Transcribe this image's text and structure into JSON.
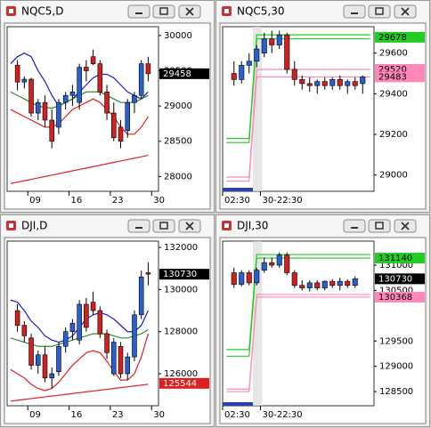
{
  "chart_data": [
    {
      "type": "candlestick",
      "title": "NQC5,D",
      "ylim": [
        27790,
        30125
      ],
      "yticks": [
        28000,
        28500,
        29000,
        29500,
        30000
      ],
      "up_color": "#2a5fd0",
      "down_color": "#d02020",
      "categories": [
        null,
        null,
        null,
        "09",
        null,
        null,
        null,
        null,
        null,
        "16",
        null,
        null,
        null,
        null,
        null,
        "23",
        null,
        null,
        null,
        null,
        null,
        "30"
      ],
      "ohlc": [
        null,
        [
          29580,
          29650,
          29220,
          29340
        ],
        [
          29340,
          29420,
          29250,
          29380
        ],
        [
          29380,
          29400,
          28850,
          28900
        ],
        [
          28900,
          29100,
          28800,
          29050
        ],
        [
          29050,
          29150,
          28700,
          28800
        ],
        [
          28800,
          28950,
          28400,
          28500
        ],
        [
          28700,
          29100,
          28600,
          29050
        ],
        [
          29050,
          29200,
          28950,
          29150
        ],
        [
          29150,
          29300,
          29000,
          29200
        ],
        [
          29050,
          29600,
          28950,
          29550
        ],
        [
          29550,
          29650,
          29350,
          29500
        ],
        [
          29700,
          29800,
          29580,
          29600
        ],
        [
          29600,
          29650,
          29150,
          29200
        ],
        [
          29200,
          29300,
          28800,
          28900
        ],
        [
          28900,
          29050,
          28500,
          28550
        ],
        [
          28700,
          28800,
          28400,
          28500
        ],
        [
          28650,
          29100,
          28550,
          29050
        ],
        [
          29050,
          29200,
          28900,
          29150
        ],
        [
          29150,
          29650,
          29100,
          29600
        ],
        [
          29600,
          29700,
          29350,
          29458
        ],
        null
      ],
      "lines": [
        {
          "color": "#1a1acc",
          "values": [
            29600,
            29700,
            29750,
            29700,
            29500,
            29350,
            29150,
            29000,
            29050,
            29100,
            29200,
            29300,
            29400,
            29450,
            29450,
            29400,
            29300,
            29200,
            29150,
            29100,
            29200,
            null
          ]
        },
        {
          "color": "#2e8b2e",
          "values": [
            29200,
            29150,
            29100,
            29050,
            29000,
            28980,
            28970,
            29000,
            29050,
            29100,
            29150,
            29200,
            29200,
            29200,
            29150,
            29100,
            29050,
            29050,
            29050,
            29100,
            29150,
            null
          ]
        },
        {
          "color": "#e02020",
          "values": [
            28950,
            28900,
            28850,
            28800,
            28750,
            28700,
            28700,
            28750,
            28850,
            28950,
            29000,
            29050,
            29100,
            29050,
            28950,
            28850,
            28700,
            28600,
            28600,
            28700,
            28850,
            null
          ]
        },
        {
          "color": "#e02020",
          "values": [
            27900,
            27920,
            27940,
            27960,
            27980,
            28000,
            28020,
            28040,
            28060,
            28080,
            28100,
            28120,
            28140,
            28160,
            28180,
            28200,
            28220,
            28240,
            28260,
            28280,
            28300,
            null
          ]
        }
      ],
      "price_labels": [
        {
          "value": 29458,
          "color": "#000000",
          "text_color": "#ffffff"
        }
      ]
    },
    {
      "type": "candlestick",
      "title": "NQC5,30",
      "ylim": [
        28920,
        29730
      ],
      "yticks": [
        29000,
        29200,
        29400,
        29600
      ],
      "up_color": "#2a5fd0",
      "down_color": "#d02020",
      "categories": [
        "02:30",
        null,
        null,
        null,
        null,
        "30-22:30",
        null,
        null,
        null,
        null,
        null,
        null,
        null,
        null,
        null,
        null,
        null,
        null,
        null,
        null
      ],
      "ohlc": [
        null,
        [
          29500,
          29560,
          29440,
          29470
        ],
        [
          29470,
          29560,
          29450,
          29540
        ],
        [
          29540,
          29600,
          29500,
          29560
        ],
        [
          29560,
          29640,
          29530,
          29620
        ],
        [
          29600,
          29700,
          29580,
          29670
        ],
        [
          29670,
          29710,
          29600,
          29640
        ],
        [
          29640,
          29710,
          29620,
          29690
        ],
        [
          29690,
          29700,
          29500,
          29520
        ],
        [
          29520,
          29560,
          29440,
          29470
        ],
        [
          29470,
          29490,
          29420,
          29450
        ],
        [
          29450,
          29480,
          29410,
          29440
        ],
        [
          29440,
          29470,
          29400,
          29460
        ],
        [
          29460,
          29480,
          29420,
          29440
        ],
        [
          29440,
          29480,
          29420,
          29470
        ],
        [
          29470,
          29490,
          29420,
          29440
        ],
        [
          29440,
          29470,
          29400,
          29460
        ],
        [
          29460,
          29480,
          29420,
          29440
        ],
        [
          29450,
          29490,
          29400,
          29483
        ],
        null
      ],
      "lines": [
        {
          "color": "#22cc22",
          "values": [
            29180,
            29180,
            29180,
            29180,
            29690,
            29690,
            29690,
            29690,
            29690,
            29690,
            29690,
            29690,
            29690,
            29690,
            29690,
            29690,
            29690,
            29690,
            29690,
            29690
          ]
        },
        {
          "color": "#22cc22",
          "values": [
            29160,
            29160,
            29160,
            29160,
            29670,
            29670,
            29670,
            29670,
            29670,
            29670,
            29670,
            29670,
            29670,
            29670,
            29670,
            29670,
            29670,
            29670,
            29670,
            29670
          ]
        },
        {
          "color": "#ff88bb",
          "values": [
            28990,
            28990,
            28990,
            28990,
            29520,
            29520,
            29520,
            29520,
            29520,
            29520,
            29520,
            29520,
            29520,
            29520,
            29520,
            29520,
            29520,
            29520,
            29520,
            29520
          ]
        },
        {
          "color": "#ff88bb",
          "values": [
            28970,
            28970,
            28970,
            28970,
            29483,
            29483,
            29483,
            29483,
            29483,
            29483,
            29483,
            29483,
            29483,
            29483,
            29483,
            29483,
            29483,
            29483,
            29483,
            29483
          ]
        }
      ],
      "price_labels": [
        {
          "value": 29678,
          "color": "#22cc22",
          "text_color": "#000000"
        },
        {
          "value": 29520,
          "color": "#ff88bb",
          "text_color": "#000000"
        },
        {
          "value": 29483,
          "color": "#ff88bb",
          "text_color": "#000000"
        }
      ]
    },
    {
      "type": "candlestick",
      "title": "DJI,D",
      "ylim": [
        124480,
        132300
      ],
      "yticks": [
        126000,
        128000,
        130000,
        132000
      ],
      "up_color": "#2a5fd0",
      "down_color": "#d02020",
      "categories": [
        null,
        null,
        null,
        "09",
        null,
        null,
        null,
        null,
        null,
        "16",
        null,
        null,
        null,
        null,
        null,
        "23",
        null,
        null,
        null,
        null,
        null,
        "30"
      ],
      "ohlc": [
        null,
        [
          129000,
          129300,
          128000,
          128300
        ],
        [
          128300,
          128500,
          127500,
          127800
        ],
        [
          127700,
          127900,
          126200,
          126400
        ],
        [
          126400,
          127100,
          126000,
          126900
        ],
        [
          126900,
          127300,
          125600,
          125800
        ],
        [
          125800,
          126300,
          125300,
          126000
        ],
        [
          126100,
          127500,
          125900,
          127300
        ],
        [
          127300,
          128200,
          127000,
          128000
        ],
        [
          128000,
          128600,
          127600,
          128400
        ],
        [
          127600,
          129500,
          127400,
          129300
        ],
        [
          129300,
          129600,
          128000,
          128200
        ],
        [
          129400,
          129900,
          128800,
          129000
        ],
        [
          129000,
          129200,
          127700,
          127900
        ],
        [
          127900,
          128100,
          126700,
          127000
        ],
        [
          126000,
          127700,
          125900,
          127500
        ],
        [
          127300,
          127500,
          125800,
          126000
        ],
        [
          126000,
          127000,
          125700,
          126800
        ],
        [
          126800,
          129000,
          126600,
          128800
        ],
        [
          128800,
          130900,
          128600,
          130600
        ],
        [
          130800,
          131300,
          130200,
          130730
        ],
        null
      ],
      "lines": [
        {
          "color": "#1a1acc",
          "values": [
            129500,
            129400,
            129000,
            128500,
            128200,
            127800,
            127600,
            127500,
            127600,
            127800,
            128200,
            128600,
            128800,
            128900,
            128800,
            128600,
            128300,
            128000,
            128000,
            128300,
            129000,
            null
          ]
        },
        {
          "color": "#2e8b2e",
          "values": [
            127700,
            127600,
            127500,
            127400,
            127300,
            127300,
            127300,
            127400,
            127500,
            127600,
            127700,
            127800,
            127900,
            127900,
            127900,
            127800,
            127700,
            127700,
            127800,
            127900,
            128100,
            null
          ]
        },
        {
          "color": "#e02020",
          "values": [
            126200,
            126000,
            125800,
            125500,
            125300,
            125200,
            125300,
            125600,
            126000,
            126400,
            126700,
            127000,
            127100,
            127000,
            126600,
            126100,
            125700,
            125700,
            126000,
            126800,
            127900,
            null
          ]
        },
        {
          "color": "#e02020",
          "values": [
            124700,
            124740,
            124780,
            124820,
            124860,
            124900,
            124940,
            124980,
            125020,
            125060,
            125100,
            125140,
            125180,
            125220,
            125260,
            125300,
            125340,
            125380,
            125420,
            125460,
            125500,
            null
          ]
        }
      ],
      "price_labels": [
        {
          "value": 130730,
          "color": "#000000",
          "text_color": "#ffffff"
        },
        {
          "value": 125544,
          "color": "#e02020",
          "text_color": "#ffffff"
        }
      ]
    },
    {
      "type": "candlestick",
      "title": "DJI,30",
      "ylim": [
        128220,
        131475
      ],
      "yticks": [
        128500,
        129000,
        129500,
        130500,
        131000
      ],
      "up_color": "#2a5fd0",
      "down_color": "#d02020",
      "categories": [
        "02:30",
        null,
        null,
        null,
        null,
        "30-22:30",
        null,
        null,
        null,
        null,
        null,
        null,
        null,
        null,
        null,
        null,
        null,
        null,
        null,
        null
      ],
      "ohlc": [
        null,
        [
          130850,
          130950,
          130550,
          130620
        ],
        [
          130620,
          130900,
          130580,
          130850
        ],
        [
          130850,
          130900,
          130600,
          130650
        ],
        [
          130650,
          130950,
          130600,
          130900
        ],
        [
          130900,
          131150,
          130850,
          131050
        ],
        [
          131050,
          131150,
          130950,
          131000
        ],
        [
          131000,
          131250,
          130950,
          131200
        ],
        [
          131200,
          131250,
          130800,
          130850
        ],
        [
          130850,
          130900,
          130550,
          130600
        ],
        [
          130600,
          130700,
          130500,
          130550
        ],
        [
          130550,
          130700,
          130480,
          130650
        ],
        [
          130650,
          130700,
          130500,
          130550
        ],
        [
          130550,
          130700,
          130500,
          130680
        ],
        [
          130680,
          130720,
          130550,
          130600
        ],
        [
          130600,
          130750,
          130500,
          130680
        ],
        [
          130680,
          130720,
          130550,
          130600
        ],
        [
          130600,
          130780,
          130550,
          130730
        ],
        null,
        null
      ],
      "lines": [
        {
          "color": "#22cc22",
          "values": [
            129330,
            129330,
            129330,
            129330,
            131210,
            131210,
            131210,
            131210,
            131210,
            131210,
            131210,
            131210,
            131210,
            131210,
            131210,
            131210,
            131210,
            131210,
            131210,
            131210
          ]
        },
        {
          "color": "#22cc22",
          "values": [
            129200,
            129200,
            129200,
            129200,
            131140,
            131140,
            131140,
            131140,
            131140,
            131140,
            131140,
            131140,
            131140,
            131140,
            131140,
            131140,
            131140,
            131140,
            131140,
            131140
          ]
        },
        {
          "color": "#ff88bb",
          "values": [
            128550,
            128550,
            128550,
            128550,
            130420,
            130420,
            130420,
            130420,
            130420,
            130420,
            130420,
            130420,
            130420,
            130420,
            130420,
            130420,
            130420,
            130420,
            130420,
            130420
          ]
        },
        {
          "color": "#ff88bb",
          "values": [
            128500,
            128500,
            128500,
            128500,
            130368,
            130368,
            130368,
            130368,
            130368,
            130368,
            130368,
            130368,
            130368,
            130368,
            130368,
            130368,
            130368,
            130368,
            130368,
            130368
          ]
        }
      ],
      "price_labels": [
        {
          "value": 131140,
          "color": "#22cc22",
          "text_color": "#000000"
        },
        {
          "value": 130730,
          "color": "#000000",
          "text_color": "#ffffff"
        },
        {
          "value": 130368,
          "color": "#ff88bb",
          "text_color": "#000000"
        }
      ]
    }
  ]
}
